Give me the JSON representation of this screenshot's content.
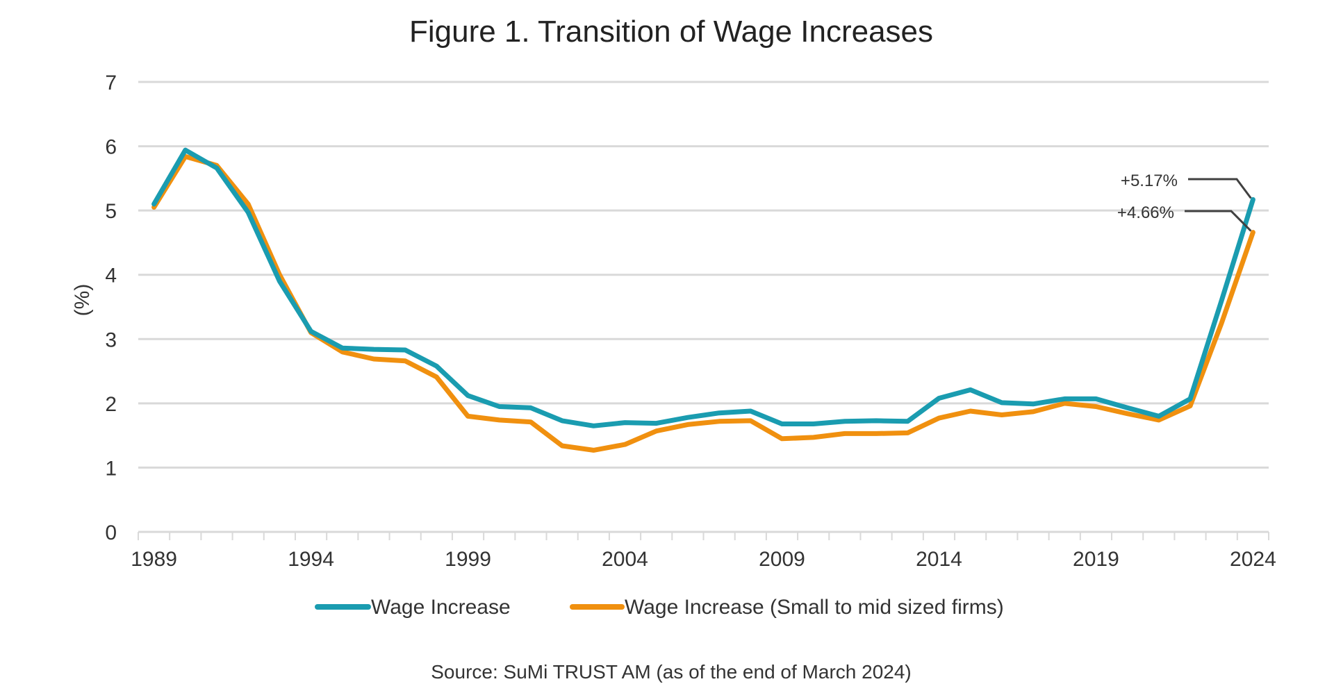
{
  "chart_data": {
    "type": "line",
    "title": "Figure 1. Transition of Wage Increases",
    "ylabel": "(%)",
    "xlabel": "",
    "ylim": [
      0,
      7
    ],
    "yticks": [
      "0",
      "1",
      "2",
      "3",
      "4",
      "5",
      "6",
      "7"
    ],
    "x": [
      1989,
      1990,
      1991,
      1992,
      1993,
      1994,
      1995,
      1996,
      1997,
      1998,
      1999,
      2000,
      2001,
      2002,
      2003,
      2004,
      2005,
      2006,
      2007,
      2008,
      2009,
      2010,
      2011,
      2012,
      2013,
      2014,
      2015,
      2016,
      2017,
      2018,
      2019,
      2020,
      2021,
      2022,
      2023,
      2024
    ],
    "xtick_labels": [
      "1989",
      "1994",
      "1999",
      "2004",
      "2009",
      "2014",
      "2019",
      "2024"
    ],
    "grid": "horizontal",
    "legend_position": "bottom",
    "series": [
      {
        "name": "Wage Increase",
        "color": "#1a9cb0",
        "values": [
          5.1,
          5.94,
          5.66,
          4.97,
          3.9,
          3.12,
          2.86,
          2.84,
          2.83,
          2.58,
          2.12,
          1.95,
          1.93,
          1.73,
          1.65,
          1.7,
          1.69,
          1.78,
          1.85,
          1.88,
          1.68,
          1.68,
          1.72,
          1.73,
          1.72,
          2.08,
          2.21,
          2.01,
          1.99,
          2.07,
          2.07,
          1.93,
          1.8,
          2.07,
          3.6,
          5.17
        ]
      },
      {
        "name": "Wage Increase (Small to mid sized firms)",
        "color": "#f0900f",
        "values": [
          5.05,
          5.84,
          5.7,
          5.1,
          4.0,
          3.1,
          2.8,
          2.69,
          2.66,
          2.41,
          1.8,
          1.74,
          1.71,
          1.34,
          1.27,
          1.36,
          1.57,
          1.67,
          1.72,
          1.73,
          1.45,
          1.47,
          1.53,
          1.53,
          1.54,
          1.77,
          1.88,
          1.82,
          1.87,
          2.0,
          1.95,
          1.84,
          1.74,
          1.96,
          3.25,
          4.66
        ]
      }
    ],
    "annotations": [
      "+5.17%",
      "+4.66%"
    ],
    "source": "Source: SuMi TRUST AM (as of the end of March 2024)"
  }
}
